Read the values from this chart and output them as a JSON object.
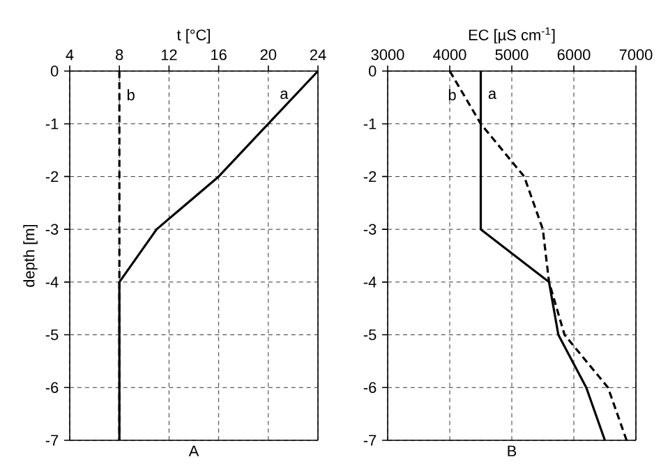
{
  "chart_data": [
    {
      "type": "line",
      "xlabel": "t [°C]",
      "ylabel": "depth [m]",
      "xlim": [
        4,
        24
      ],
      "xticks": [
        4,
        8,
        12,
        16,
        20,
        24
      ],
      "ylim": [
        -7,
        0
      ],
      "yticks": [
        -7,
        -6,
        -5,
        -4,
        -3,
        -2,
        -1,
        0
      ],
      "grid": true,
      "marker": "none",
      "series": [
        {
          "name": "a",
          "color": "#000000",
          "line_style": "solid",
          "x": [
            24,
            20,
            16,
            11,
            8,
            8,
            8,
            8
          ],
          "values": [
            0,
            -1,
            -2,
            -3,
            -4,
            -5,
            -6,
            -7
          ]
        },
        {
          "name": "b",
          "color": "#000000",
          "line_style": "dashed",
          "x": [
            8,
            8,
            8,
            8,
            8,
            8,
            8,
            8
          ],
          "values": [
            0,
            -1,
            -2,
            -3,
            -4,
            -5,
            -6,
            -7
          ]
        }
      ],
      "annotations": [
        "A"
      ]
    },
    {
      "type": "line",
      "xlabel": "EC [µS cm$^{-1}$]",
      "xlim": [
        3000,
        7000
      ],
      "xticks": [
        3000,
        4000,
        5000,
        6000,
        7000
      ],
      "ylim": [
        -7,
        0
      ],
      "yticks": [
        -7,
        -6,
        -5,
        -4,
        -3,
        -2,
        -1,
        0
      ],
      "grid": true,
      "marker": "none",
      "series": [
        {
          "name": "a",
          "color": "#000000",
          "line_style": "solid",
          "x": [
            4500,
            4500,
            4500,
            4500,
            5600,
            5750,
            6200,
            6500
          ],
          "values": [
            0,
            -1,
            -2,
            -3,
            -4,
            -5,
            -6,
            -7
          ]
        },
        {
          "name": "b",
          "color": "#000000",
          "line_style": "dashed",
          "x": [
            4000,
            4500,
            5200,
            5500,
            5600,
            5850,
            6550,
            6850
          ],
          "values": [
            0,
            -1,
            -2,
            -3,
            -4,
            -5,
            -6,
            -7
          ]
        }
      ],
      "annotations": [
        "B"
      ]
    }
  ]
}
